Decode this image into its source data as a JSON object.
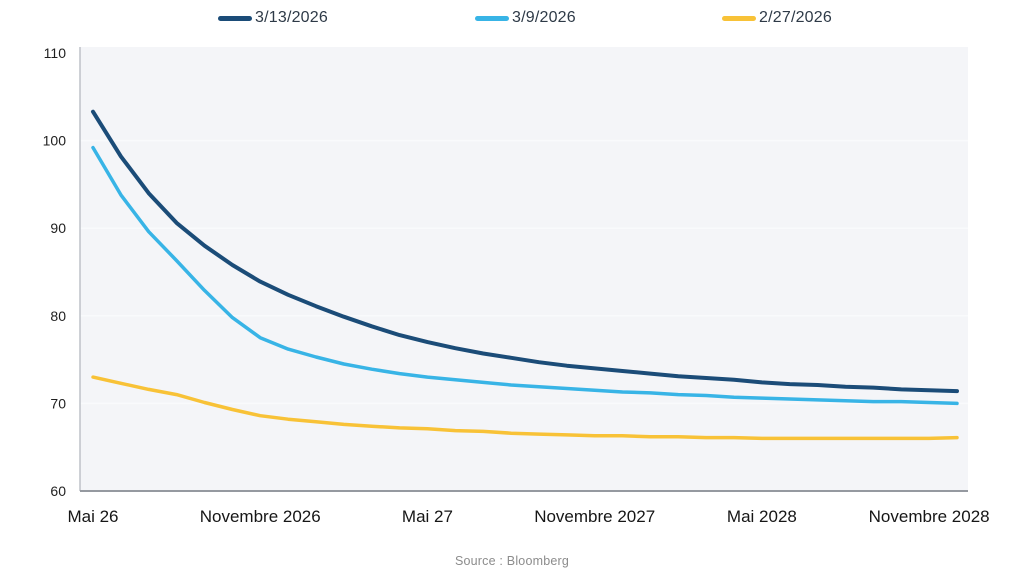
{
  "legend": {
    "items": [
      {
        "label": "3/13/2026",
        "color": "#1b4c78"
      },
      {
        "label": "3/9/2026",
        "color": "#38b4e6"
      },
      {
        "label": "2/27/2026",
        "color": "#f8c237"
      }
    ]
  },
  "source": {
    "text": "Source : Bloomberg"
  },
  "chart_data": {
    "type": "line",
    "title": "",
    "xlabel": "",
    "ylabel": "",
    "ylim": [
      60,
      110
    ],
    "y_ticks": [
      110,
      100,
      90,
      80,
      70,
      60
    ],
    "grid_values": [
      100,
      90,
      80,
      70
    ],
    "x_unit": "month-index (0 = Mai 2026, monthly steps to Dec 2028)",
    "x_tick_positions": [
      0,
      6,
      12,
      18,
      24,
      30
    ],
    "x_tick_labels": [
      "Mai 26",
      "Novembre 2026",
      "Mai 27",
      "Novembre 2027",
      "Mai 2028",
      "Novembre 2028"
    ],
    "legend_position": "top",
    "grid": "horizontal-faint",
    "plot_bg_color": "#f4f5f8",
    "grid_color": "#f9fafc",
    "axis_bottom_color": "#9599a0",
    "axis_left_color": "#bec2c8",
    "series": [
      {
        "name": "3/13/2026",
        "color": "#1b4c78",
        "stroke_width": 4,
        "values": [
          103.3,
          98.2,
          94.0,
          90.6,
          88.0,
          85.8,
          83.9,
          82.4,
          81.1,
          79.9,
          78.8,
          77.8,
          77.0,
          76.3,
          75.7,
          75.2,
          74.7,
          74.3,
          74.0,
          73.7,
          73.4,
          73.1,
          72.9,
          72.7,
          72.4,
          72.2,
          72.1,
          71.9,
          71.8,
          71.6,
          71.5,
          71.4
        ]
      },
      {
        "name": "3/9/2026",
        "color": "#38b4e6",
        "stroke_width": 3.5,
        "values": [
          99.2,
          93.8,
          89.6,
          86.3,
          82.9,
          79.8,
          77.5,
          76.2,
          75.3,
          74.5,
          73.9,
          73.4,
          73.0,
          72.7,
          72.4,
          72.1,
          71.9,
          71.7,
          71.5,
          71.3,
          71.2,
          71.0,
          70.9,
          70.7,
          70.6,
          70.5,
          70.4,
          70.3,
          70.2,
          70.2,
          70.1,
          70.0
        ]
      },
      {
        "name": "2/27/2026",
        "color": "#f8c237",
        "stroke_width": 3.5,
        "values": [
          73.0,
          72.3,
          71.6,
          71.0,
          70.1,
          69.3,
          68.6,
          68.2,
          67.9,
          67.6,
          67.4,
          67.2,
          67.1,
          66.9,
          66.8,
          66.6,
          66.5,
          66.4,
          66.3,
          66.3,
          66.2,
          66.2,
          66.1,
          66.1,
          66.0,
          66.0,
          66.0,
          66.0,
          66.0,
          66.0,
          66.0,
          66.1
        ]
      }
    ]
  }
}
